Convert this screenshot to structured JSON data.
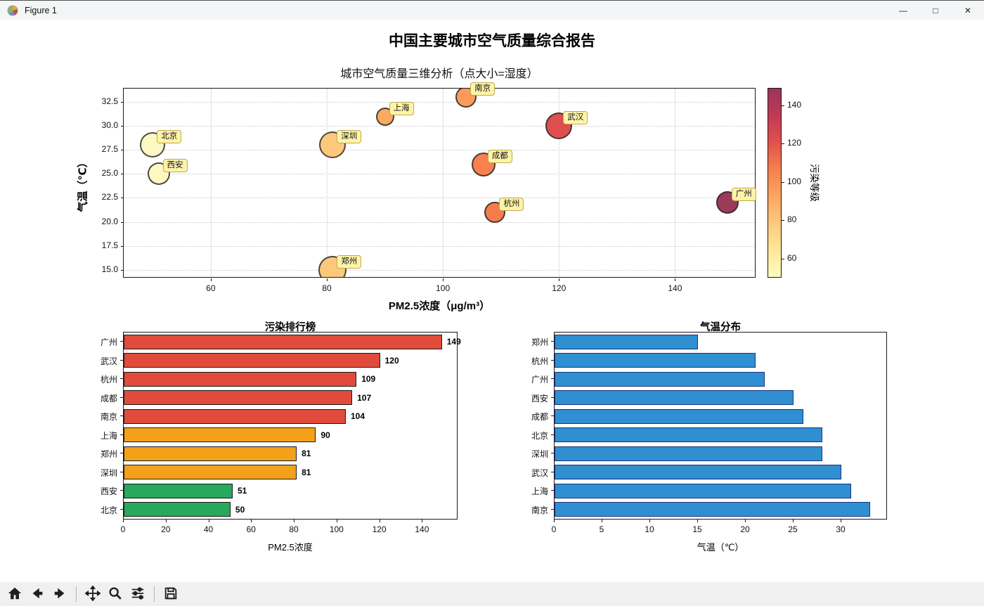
{
  "window": {
    "title": "Figure 1",
    "controls": [
      {
        "name": "minimize",
        "glyph": "—"
      },
      {
        "name": "maximize",
        "glyph": "□"
      },
      {
        "name": "close",
        "glyph": "✕"
      }
    ]
  },
  "figure_title": "中国主要城市空气质量综合报告",
  "toolbar": {
    "icons": [
      "home",
      "back",
      "forward",
      "pan",
      "zoom",
      "configure-subplots",
      "save"
    ]
  },
  "chart_data": [
    {
      "type": "scatter",
      "title": "城市空气质量三维分析（点大小=湿度）",
      "xlabel": "PM2.5浓度（μg/m³）",
      "ylabel": "气温（℃）",
      "xlim": [
        45,
        154
      ],
      "ylim": [
        14.1,
        33.9
      ],
      "x_ticks": [
        60,
        80,
        100,
        120,
        140
      ],
      "y_ticks": [
        15.0,
        17.5,
        20.0,
        22.5,
        25.0,
        27.5,
        30.0,
        32.5
      ],
      "grid": true,
      "label_box": {
        "bg": "#fdf4aa",
        "border": "#c3a84e"
      },
      "points": [
        {
          "city": "北京",
          "pm25": 50,
          "temp": 28,
          "radius": 18,
          "color": "#fbf8c2"
        },
        {
          "city": "西安",
          "pm25": 51,
          "temp": 25,
          "radius": 16,
          "color": "#fbf8c0"
        },
        {
          "city": "深圳",
          "pm25": 81,
          "temp": 28,
          "radius": 19,
          "color": "#fdc87c"
        },
        {
          "city": "郑州",
          "pm25": 81,
          "temp": 15,
          "radius": 20,
          "color": "#fdc87c"
        },
        {
          "city": "上海",
          "pm25": 90,
          "temp": 31,
          "radius": 13,
          "color": "#fbaa60"
        },
        {
          "city": "南京",
          "pm25": 104,
          "temp": 33,
          "radius": 15,
          "color": "#fb9a59"
        },
        {
          "city": "成都",
          "pm25": 107,
          "temp": 26,
          "radius": 17,
          "color": "#f8814f"
        },
        {
          "city": "杭州",
          "pm25": 109,
          "temp": 21,
          "radius": 15,
          "color": "#f77c4d"
        },
        {
          "city": "武汉",
          "pm25": 120,
          "temp": 30,
          "radius": 19,
          "color": "#de4f4e"
        },
        {
          "city": "广州",
          "pm25": 149,
          "temp": 22,
          "radius": 16,
          "color": "#9c3a5c"
        }
      ],
      "colorbar": {
        "label": "污染等级",
        "ticks": [
          60,
          80,
          100,
          120,
          140
        ],
        "lim": [
          50,
          149
        ],
        "gradient": [
          "#fdfbc0",
          "#fee899",
          "#fdc97d",
          "#fca55f",
          "#f6804e",
          "#e0514d",
          "#c03a55",
          "#9a3459"
        ]
      }
    },
    {
      "type": "bar",
      "orientation": "horizontal",
      "title": "污染排行榜",
      "xlabel": "PM2.5浓度",
      "xlim": [
        0,
        156
      ],
      "x_ticks": [
        0,
        20,
        40,
        60,
        80,
        100,
        120,
        140
      ],
      "categories": [
        "广州",
        "武汉",
        "杭州",
        "成都",
        "南京",
        "上海",
        "郑州",
        "深圳",
        "西安",
        "北京"
      ],
      "values": [
        149,
        120,
        109,
        107,
        104,
        90,
        81,
        81,
        51,
        50
      ],
      "bar_colors": [
        "#e14b3b",
        "#e14b3b",
        "#e14b3b",
        "#e14b3b",
        "#e14b3b",
        "#f3a11a",
        "#f3a11a",
        "#f3a11a",
        "#27a85c",
        "#27a85c"
      ],
      "edge_color": "#1a1a1a",
      "value_labels": true
    },
    {
      "type": "bar",
      "orientation": "horizontal",
      "title": "气温分布",
      "xlabel": "气温（℃）",
      "xlim": [
        0,
        34.7
      ],
      "x_ticks": [
        0,
        5,
        10,
        15,
        20,
        25,
        30
      ],
      "categories": [
        "郑州",
        "杭州",
        "广州",
        "西安",
        "成都",
        "北京",
        "深圳",
        "武汉",
        "上海",
        "南京"
      ],
      "values": [
        15,
        21,
        22,
        25,
        26,
        28,
        28,
        30,
        31,
        33
      ],
      "bar_colors": [
        "#2f8fd0",
        "#2f8fd0",
        "#2f8fd0",
        "#2f8fd0",
        "#2f8fd0",
        "#2f8fd0",
        "#2f8fd0",
        "#2f8fd0",
        "#2f8fd0",
        "#2f8fd0"
      ],
      "edge_color": "#1a3380",
      "value_labels": false
    }
  ]
}
